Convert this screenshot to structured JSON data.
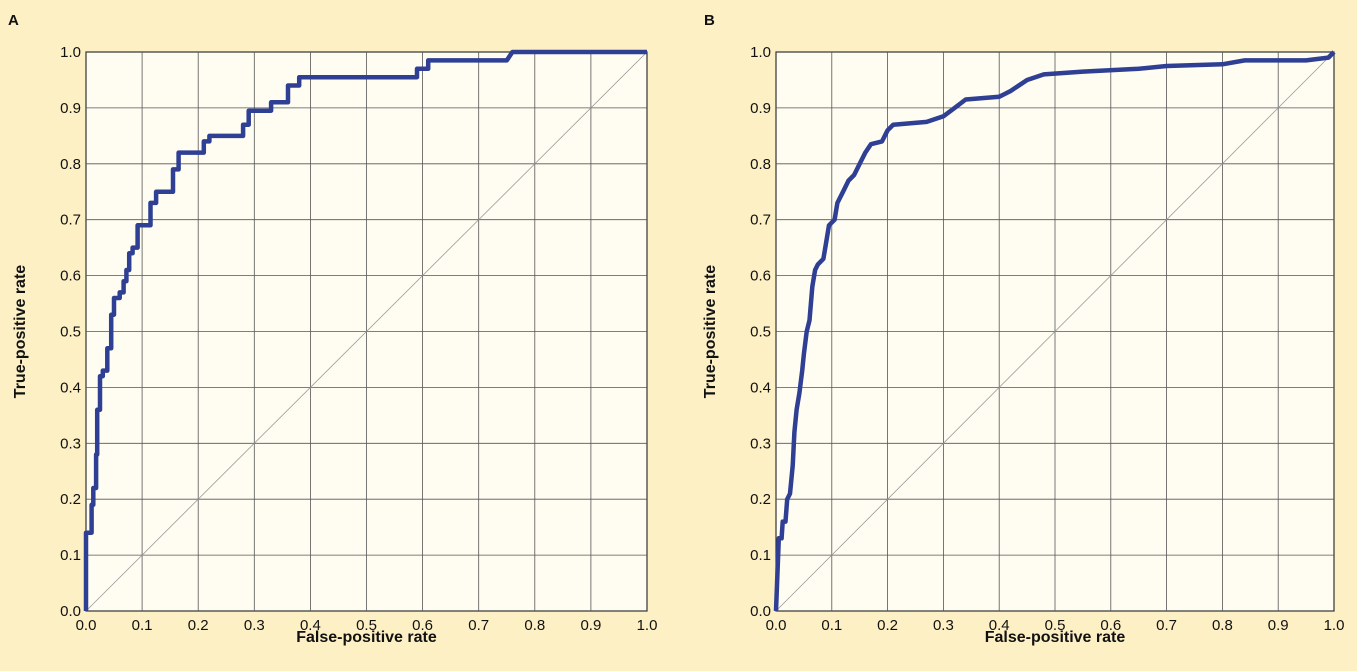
{
  "colors": {
    "background": "#fdf0c4",
    "plot_area": "#fffdf2",
    "curve": "#2e3f94"
  },
  "chart_data": [
    {
      "type": "line",
      "panel": "A",
      "xlabel": "False-positive rate",
      "ylabel": "True-positive rate",
      "xlim": [
        0,
        1
      ],
      "ylim": [
        0,
        1
      ],
      "xticks": [
        "0.0",
        "0.1",
        "0.2",
        "0.3",
        "0.4",
        "0.5",
        "0.6",
        "0.7",
        "0.8",
        "0.9",
        "1.0"
      ],
      "yticks": [
        "0.0",
        "0.1",
        "0.2",
        "0.3",
        "0.4",
        "0.5",
        "0.6",
        "0.7",
        "0.8",
        "0.9",
        "1.0"
      ],
      "grid": true,
      "reference_line": true,
      "series": [
        {
          "values": [
            [
              0.0,
              0.0
            ],
            [
              0.0,
              0.14
            ],
            [
              0.01,
              0.14
            ],
            [
              0.01,
              0.19
            ],
            [
              0.013,
              0.19
            ],
            [
              0.013,
              0.22
            ],
            [
              0.018,
              0.22
            ],
            [
              0.018,
              0.28
            ],
            [
              0.02,
              0.28
            ],
            [
              0.02,
              0.36
            ],
            [
              0.025,
              0.36
            ],
            [
              0.025,
              0.42
            ],
            [
              0.03,
              0.42
            ],
            [
              0.03,
              0.43
            ],
            [
              0.038,
              0.43
            ],
            [
              0.038,
              0.47
            ],
            [
              0.045,
              0.47
            ],
            [
              0.045,
              0.53
            ],
            [
              0.05,
              0.53
            ],
            [
              0.05,
              0.56
            ],
            [
              0.06,
              0.56
            ],
            [
              0.06,
              0.57
            ],
            [
              0.067,
              0.57
            ],
            [
              0.067,
              0.59
            ],
            [
              0.072,
              0.59
            ],
            [
              0.072,
              0.61
            ],
            [
              0.077,
              0.61
            ],
            [
              0.077,
              0.64
            ],
            [
              0.083,
              0.64
            ],
            [
              0.083,
              0.65
            ],
            [
              0.092,
              0.65
            ],
            [
              0.092,
              0.69
            ],
            [
              0.115,
              0.69
            ],
            [
              0.115,
              0.73
            ],
            [
              0.125,
              0.73
            ],
            [
              0.125,
              0.75
            ],
            [
              0.155,
              0.75
            ],
            [
              0.155,
              0.79
            ],
            [
              0.165,
              0.79
            ],
            [
              0.165,
              0.82
            ],
            [
              0.21,
              0.82
            ],
            [
              0.21,
              0.84
            ],
            [
              0.22,
              0.84
            ],
            [
              0.22,
              0.85
            ],
            [
              0.28,
              0.85
            ],
            [
              0.28,
              0.87
            ],
            [
              0.29,
              0.87
            ],
            [
              0.29,
              0.895
            ],
            [
              0.33,
              0.895
            ],
            [
              0.33,
              0.91
            ],
            [
              0.36,
              0.91
            ],
            [
              0.36,
              0.94
            ],
            [
              0.38,
              0.94
            ],
            [
              0.38,
              0.955
            ],
            [
              0.59,
              0.955
            ],
            [
              0.59,
              0.97
            ],
            [
              0.61,
              0.97
            ],
            [
              0.61,
              0.985
            ],
            [
              0.75,
              0.985
            ],
            [
              0.76,
              1.0
            ],
            [
              1.0,
              1.0
            ]
          ]
        }
      ]
    },
    {
      "type": "line",
      "panel": "B",
      "xlabel": "False-positive rate",
      "ylabel": "True-positive rate",
      "xlim": [
        0,
        1
      ],
      "ylim": [
        0,
        1
      ],
      "xticks": [
        "0.0",
        "0.1",
        "0.2",
        "0.3",
        "0.4",
        "0.5",
        "0.6",
        "0.7",
        "0.8",
        "0.9",
        "1.0"
      ],
      "yticks": [
        "0.0",
        "0.1",
        "0.2",
        "0.3",
        "0.4",
        "0.5",
        "0.6",
        "0.7",
        "0.8",
        "0.9",
        "1.0"
      ],
      "grid": true,
      "reference_line": true,
      "series": [
        {
          "values": [
            [
              0.0,
              0.0
            ],
            [
              0.005,
              0.13
            ],
            [
              0.01,
              0.13
            ],
            [
              0.012,
              0.16
            ],
            [
              0.017,
              0.16
            ],
            [
              0.02,
              0.2
            ],
            [
              0.025,
              0.21
            ],
            [
              0.03,
              0.26
            ],
            [
              0.033,
              0.32
            ],
            [
              0.037,
              0.36
            ],
            [
              0.042,
              0.39
            ],
            [
              0.047,
              0.43
            ],
            [
              0.05,
              0.46
            ],
            [
              0.055,
              0.5
            ],
            [
              0.06,
              0.52
            ],
            [
              0.065,
              0.58
            ],
            [
              0.07,
              0.61
            ],
            [
              0.075,
              0.62
            ],
            [
              0.085,
              0.63
            ],
            [
              0.09,
              0.66
            ],
            [
              0.095,
              0.69
            ],
            [
              0.105,
              0.7
            ],
            [
              0.11,
              0.73
            ],
            [
              0.12,
              0.75
            ],
            [
              0.13,
              0.77
            ],
            [
              0.14,
              0.78
            ],
            [
              0.15,
              0.8
            ],
            [
              0.16,
              0.82
            ],
            [
              0.17,
              0.835
            ],
            [
              0.19,
              0.84
            ],
            [
              0.2,
              0.86
            ],
            [
              0.21,
              0.87
            ],
            [
              0.27,
              0.875
            ],
            [
              0.3,
              0.885
            ],
            [
              0.32,
              0.9
            ],
            [
              0.34,
              0.915
            ],
            [
              0.4,
              0.92
            ],
            [
              0.42,
              0.93
            ],
            [
              0.45,
              0.95
            ],
            [
              0.48,
              0.96
            ],
            [
              0.55,
              0.965
            ],
            [
              0.65,
              0.97
            ],
            [
              0.7,
              0.975
            ],
            [
              0.8,
              0.978
            ],
            [
              0.84,
              0.985
            ],
            [
              0.95,
              0.985
            ],
            [
              0.99,
              0.99
            ],
            [
              1.0,
              1.0
            ]
          ]
        }
      ]
    }
  ]
}
